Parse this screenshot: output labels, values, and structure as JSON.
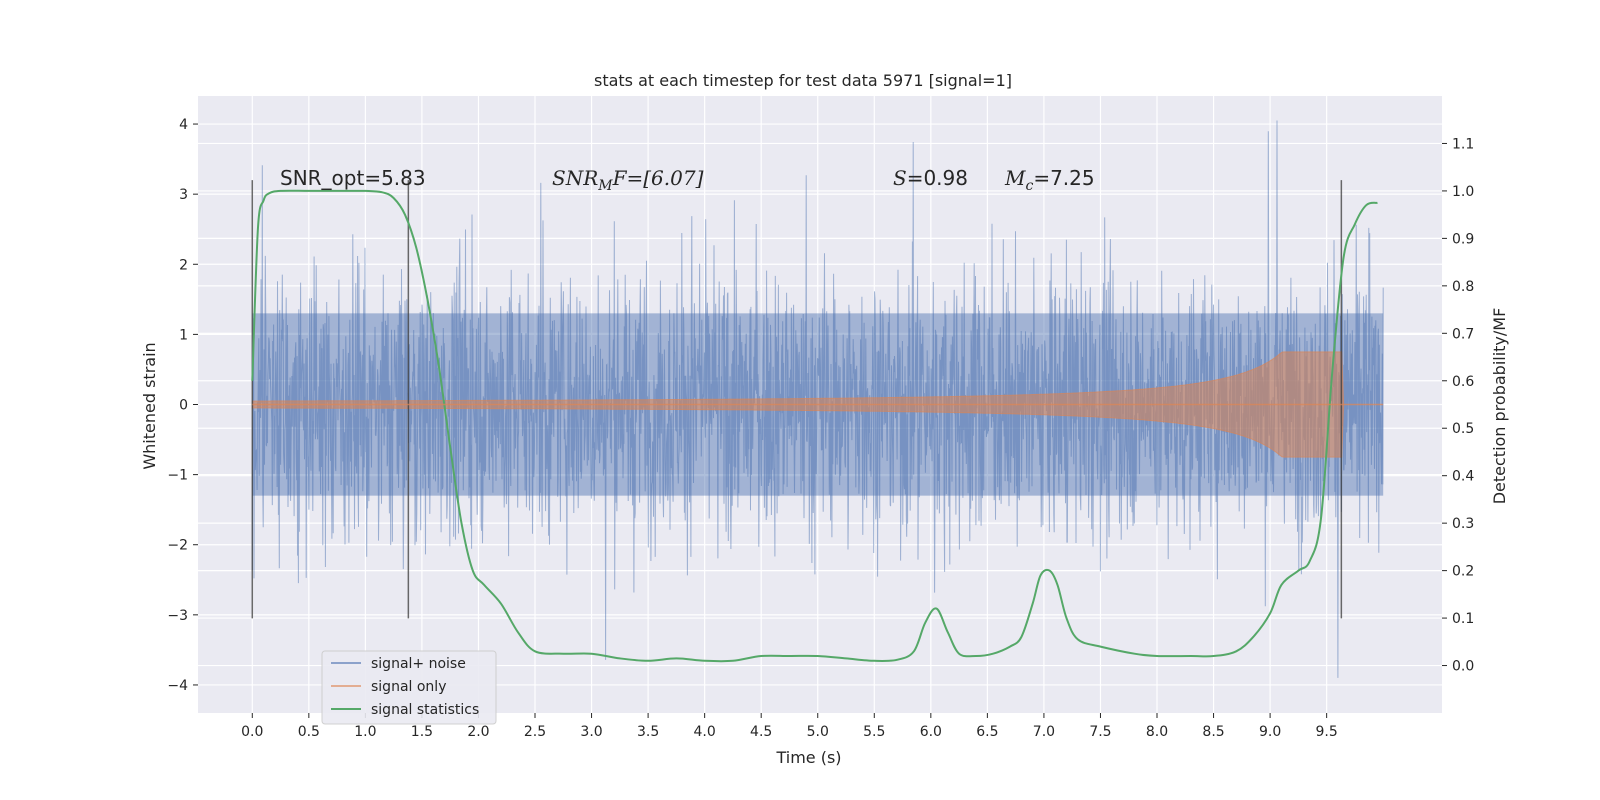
{
  "chart_data": {
    "type": "line",
    "title": "stats at each timestep for test data 5971 [signal=1]",
    "xlabel": "Time (s)",
    "ylabel": "Whitened strain",
    "y2label": "Detection probability/MF",
    "xlim": [
      -0.48,
      10.52
    ],
    "ylim": [
      -4.4,
      4.4
    ],
    "y2lim": [
      -0.1,
      1.2
    ],
    "xticks": [
      "0.0",
      "0.5",
      "1.0",
      "1.5",
      "2.0",
      "2.5",
      "3.0",
      "3.5",
      "4.0",
      "4.5",
      "5.0",
      "5.5",
      "6.0",
      "6.5",
      "7.0",
      "7.5",
      "8.0",
      "8.5",
      "9.0",
      "9.5"
    ],
    "yticks": [
      "4",
      "3",
      "2",
      "1",
      "0",
      "−1",
      "−2",
      "−3",
      "−4"
    ],
    "y2ticks": [
      "1.1",
      "1.0",
      "0.9",
      "0.8",
      "0.7",
      "0.6",
      "0.5",
      "0.4",
      "0.3",
      "0.2",
      "0.1",
      "0.0"
    ],
    "grid": true,
    "legend_position": "lower-left",
    "series": [
      {
        "name": "signal+ noise",
        "color": "#4c72b0",
        "axis": "left",
        "x_range": [
          0.0,
          10.0
        ],
        "band": [
          -1.3,
          1.3
        ],
        "peak_max": 4.05,
        "peak_min": -3.9
      },
      {
        "name": "signal only",
        "color": "#dd8452",
        "axis": "left",
        "chirp_end_time": 9.65,
        "chirp_max_amplitude": 0.75,
        "x_range": [
          0.0,
          10.0
        ]
      },
      {
        "name": "signal statistics",
        "color": "#55a868",
        "axis": "right",
        "x": [
          0.0,
          0.05,
          0.1,
          0.15,
          0.25,
          0.5,
          0.75,
          1.0,
          1.15,
          1.25,
          1.35,
          1.45,
          1.55,
          1.65,
          1.75,
          1.85,
          1.95,
          2.05,
          2.2,
          2.35,
          2.5,
          2.75,
          3.0,
          3.25,
          3.5,
          3.75,
          4.0,
          4.25,
          4.5,
          4.75,
          5.0,
          5.25,
          5.5,
          5.7,
          5.85,
          5.95,
          6.05,
          6.15,
          6.25,
          6.4,
          6.55,
          6.7,
          6.8,
          6.9,
          6.97,
          7.05,
          7.12,
          7.2,
          7.3,
          7.5,
          7.8,
          8.0,
          8.3,
          8.5,
          8.7,
          8.85,
          9.0,
          9.1,
          9.25,
          9.35,
          9.45,
          9.55,
          9.65,
          9.75,
          9.85,
          9.95
        ],
        "values": [
          0.6,
          0.92,
          0.98,
          0.995,
          1.0,
          1.0,
          1.0,
          1.0,
          0.997,
          0.985,
          0.95,
          0.88,
          0.77,
          0.63,
          0.46,
          0.3,
          0.2,
          0.17,
          0.13,
          0.07,
          0.03,
          0.025,
          0.025,
          0.015,
          0.01,
          0.015,
          0.01,
          0.01,
          0.02,
          0.02,
          0.02,
          0.015,
          0.01,
          0.012,
          0.03,
          0.09,
          0.12,
          0.07,
          0.025,
          0.02,
          0.025,
          0.04,
          0.06,
          0.13,
          0.19,
          0.2,
          0.17,
          0.1,
          0.055,
          0.04,
          0.025,
          0.02,
          0.02,
          0.02,
          0.03,
          0.06,
          0.11,
          0.17,
          0.2,
          0.22,
          0.31,
          0.62,
          0.86,
          0.93,
          0.97,
          0.975
        ]
      }
    ],
    "vlines": [
      0.0,
      1.38,
      9.63
    ],
    "vline_range": [
      -3.05,
      3.2
    ],
    "annotations": {
      "snr_opt": "SNR_opt=5.83",
      "snr_mf_lhs": "SNR",
      "snr_mf_sub": "M",
      "snr_mf_rhs": "F=[6.07]",
      "s_lhs": "S",
      "s_rhs": "=0.98",
      "mc_lhs": "M",
      "mc_sub": "c",
      "mc_rhs": "=7.25"
    }
  }
}
